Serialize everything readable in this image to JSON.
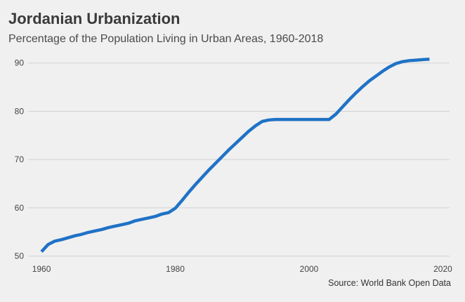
{
  "chart_data": {
    "type": "line",
    "title": "Jordanian Urbanization",
    "subtitle": "Percentage of the Population Living in Urban Areas, 1960-2018",
    "caption": "Source: World Bank Open Data",
    "xlabel": "",
    "ylabel": "",
    "xlim": [
      1958,
      2021
    ],
    "ylim": [
      49.5,
      92
    ],
    "x_ticks": [
      1960,
      1980,
      2000,
      2020
    ],
    "y_ticks": [
      50,
      60,
      70,
      80,
      90
    ],
    "grid": "horizontal",
    "series": [
      {
        "color": "#1f72c6",
        "x": [
          1960,
          1961,
          1962,
          1963,
          1964,
          1965,
          1966,
          1967,
          1968,
          1969,
          1970,
          1971,
          1972,
          1973,
          1974,
          1975,
          1976,
          1977,
          1978,
          1979,
          1980,
          1981,
          1982,
          1983,
          1984,
          1985,
          1986,
          1987,
          1988,
          1989,
          1990,
          1991,
          1992,
          1993,
          1994,
          1995,
          1996,
          1997,
          1998,
          1999,
          2000,
          2001,
          2002,
          2003,
          2004,
          2005,
          2006,
          2007,
          2008,
          2009,
          2010,
          2011,
          2012,
          2013,
          2014,
          2015,
          2016,
          2017,
          2018
        ],
        "values": [
          50.9,
          52.4,
          53.1,
          53.4,
          53.8,
          54.2,
          54.5,
          54.9,
          55.2,
          55.5,
          55.9,
          56.2,
          56.5,
          56.8,
          57.3,
          57.6,
          57.9,
          58.2,
          58.7,
          59.0,
          59.9,
          61.5,
          63.2,
          64.8,
          66.3,
          67.8,
          69.2,
          70.6,
          72.0,
          73.3,
          74.6,
          75.9,
          77.0,
          77.9,
          78.2,
          78.3,
          78.3,
          78.3,
          78.3,
          78.3,
          78.3,
          78.3,
          78.3,
          78.3,
          79.4,
          80.9,
          82.4,
          83.8,
          85.1,
          86.3,
          87.3,
          88.3,
          89.2,
          89.9,
          90.3,
          90.5,
          90.6,
          90.7,
          90.8
        ]
      }
    ]
  }
}
